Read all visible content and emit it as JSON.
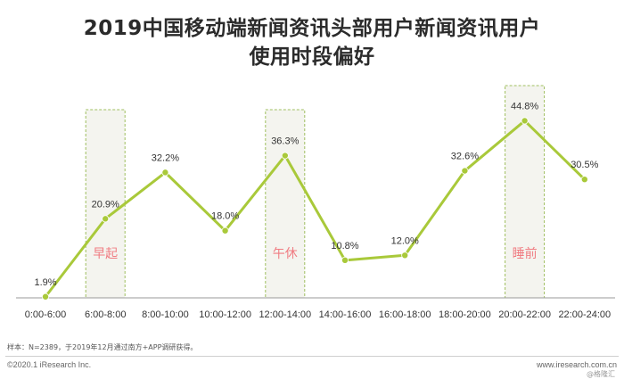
{
  "title_line1": "2019中国移动端新闻资讯头部用户新闻资讯用户",
  "title_line2": "使用时段偏好",
  "chart_data": {
    "type": "line",
    "categories": [
      "0:00-6:00",
      "6:00-8:00",
      "8:00-10:00",
      "10:00-12:00",
      "12:00-14:00",
      "14:00-16:00",
      "16:00-18:00",
      "18:00-20:00",
      "20:00-22:00",
      "22:00-24:00"
    ],
    "series": [
      {
        "values": [
          1.9,
          20.9,
          32.2,
          18.0,
          36.3,
          10.8,
          12.0,
          32.6,
          44.8,
          30.5
        ],
        "labels": [
          "1.9%",
          "20.9%",
          "32.2%",
          "18.0%",
          "36.3%",
          "10.8%",
          "12.0%",
          "32.6%",
          "44.8%",
          "30.5%"
        ]
      }
    ],
    "ylim": [
      0,
      50
    ],
    "grid": false,
    "highlights": [
      {
        "category": "6:00-8:00",
        "label": "早起"
      },
      {
        "category": "12:00-14:00",
        "label": "午休"
      },
      {
        "category": "20:00-22:00",
        "label": "睡前"
      }
    ],
    "colors": {
      "line": "#a9c93a",
      "marker": "#a9c93a",
      "highlight_text": "#f07c82",
      "highlight_border": "#9fbf5f",
      "highlight_fill": "#f4f4ef"
    }
  },
  "footer": {
    "note": "样本：N=2389，于2019年12月通过南方+APP调研获得。",
    "copyright": "©2020.1 iResearch Inc.",
    "site": "www.iresearch.com.cn",
    "watermark": "@格隆汇"
  }
}
